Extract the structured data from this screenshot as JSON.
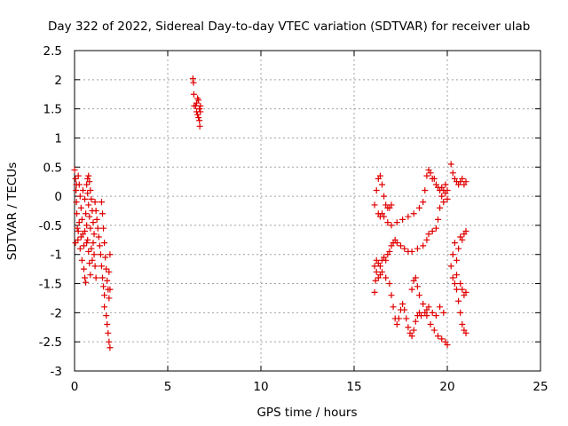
{
  "chart_data": {
    "type": "scatter",
    "title": "Day 322 of 2022, Sidereal Day-to-day VTEC variation (SDTVAR) for receiver ulab",
    "xlabel": "GPS time / hours",
    "ylabel": "SDTVAR / TECUs",
    "xlim": [
      0,
      25
    ],
    "ylim": [
      -3,
      2.5
    ],
    "xticks": [
      "0",
      "5",
      "10",
      "15",
      "20",
      "25"
    ],
    "yticks": [
      "2.5",
      "2",
      "1.5",
      "1",
      "0.5",
      "0",
      "-0.5",
      "-1",
      "-1.5",
      "-2",
      "-2.5",
      "-3"
    ],
    "grid": true,
    "marker": "+",
    "color": "#e00000",
    "series": [
      {
        "points": [
          [
            0.0,
            0.45
          ],
          [
            0.05,
            0.3
          ],
          [
            0.08,
            0.1
          ],
          [
            0.1,
            -0.1
          ],
          [
            0.12,
            -0.3
          ],
          [
            0.15,
            -0.55
          ],
          [
            0.18,
            -0.75
          ],
          [
            0.05,
            -0.8
          ],
          [
            0.2,
            0.35
          ],
          [
            0.25,
            0.2
          ],
          [
            0.3,
            0.0
          ],
          [
            0.35,
            -0.2
          ],
          [
            0.4,
            -0.4
          ],
          [
            0.45,
            -0.65
          ],
          [
            0.5,
            -0.85
          ],
          [
            0.3,
            -0.9
          ],
          [
            0.4,
            -1.1
          ],
          [
            0.5,
            -1.25
          ],
          [
            0.55,
            -1.4
          ],
          [
            0.6,
            -1.48
          ],
          [
            0.45,
            0.1
          ],
          [
            0.55,
            -0.05
          ],
          [
            0.6,
            -0.3
          ],
          [
            0.65,
            -0.5
          ],
          [
            0.7,
            -0.75
          ],
          [
            0.75,
            -0.95
          ],
          [
            0.8,
            -1.15
          ],
          [
            0.85,
            -1.35
          ],
          [
            0.65,
            0.2
          ],
          [
            0.7,
            0.05
          ],
          [
            0.75,
            -0.15
          ],
          [
            0.8,
            -0.35
          ],
          [
            0.85,
            -0.55
          ],
          [
            0.7,
            0.3
          ],
          [
            0.75,
            0.35
          ],
          [
            0.8,
            0.25
          ],
          [
            0.85,
            0.1
          ],
          [
            0.9,
            -0.05
          ],
          [
            0.95,
            -0.25
          ],
          [
            1.0,
            -0.45
          ],
          [
            1.05,
            -0.65
          ],
          [
            1.0,
            -0.8
          ],
          [
            1.05,
            -1.0
          ],
          [
            1.1,
            -1.2
          ],
          [
            1.15,
            -1.4
          ],
          [
            0.95,
            -1.1
          ],
          [
            0.9,
            -0.9
          ],
          [
            1.1,
            -0.1
          ],
          [
            1.15,
            -0.25
          ],
          [
            1.2,
            -0.4
          ],
          [
            1.25,
            -0.55
          ],
          [
            1.3,
            -0.7
          ],
          [
            1.35,
            -0.85
          ],
          [
            1.4,
            -1.0
          ],
          [
            1.45,
            -1.2
          ],
          [
            1.5,
            -1.4
          ],
          [
            1.55,
            -1.55
          ],
          [
            1.6,
            -1.7
          ],
          [
            1.45,
            -0.1
          ],
          [
            1.5,
            -0.3
          ],
          [
            1.55,
            -0.55
          ],
          [
            1.6,
            -0.8
          ],
          [
            1.65,
            -1.05
          ],
          [
            1.7,
            -1.25
          ],
          [
            1.75,
            -1.45
          ],
          [
            1.8,
            -1.6
          ],
          [
            1.85,
            -1.75
          ],
          [
            1.9,
            -1.6
          ],
          [
            1.85,
            -1.3
          ],
          [
            1.9,
            -1.0
          ],
          [
            1.6,
            -1.9
          ],
          [
            1.7,
            -2.05
          ],
          [
            1.75,
            -2.2
          ],
          [
            1.8,
            -2.35
          ],
          [
            1.85,
            -2.5
          ],
          [
            1.9,
            -2.6
          ],
          [
            0.2,
            -0.6
          ],
          [
            0.35,
            -0.7
          ],
          [
            0.55,
            -0.6
          ],
          [
            0.65,
            -0.8
          ],
          [
            0.25,
            -0.45
          ],
          [
            0.1,
            0.2
          ]
        ]
      },
      {
        "points": [
          [
            6.35,
            2.02
          ],
          [
            6.38,
            1.95
          ],
          [
            6.4,
            1.75
          ],
          [
            6.42,
            1.55
          ],
          [
            6.5,
            1.55
          ],
          [
            6.55,
            1.6
          ],
          [
            6.55,
            1.45
          ],
          [
            6.6,
            1.4
          ],
          [
            6.6,
            1.68
          ],
          [
            6.65,
            1.65
          ],
          [
            6.65,
            1.35
          ],
          [
            6.7,
            1.3
          ],
          [
            6.7,
            1.5
          ],
          [
            6.72,
            1.2
          ],
          [
            6.75,
            1.55
          ],
          [
            6.75,
            1.45
          ]
        ]
      },
      {
        "points": [
          [
            16.1,
            -0.15
          ],
          [
            16.2,
            0.1
          ],
          [
            16.3,
            0.3
          ],
          [
            16.4,
            0.35
          ],
          [
            16.5,
            0.2
          ],
          [
            16.6,
            0.0
          ],
          [
            16.7,
            -0.15
          ],
          [
            16.8,
            -0.2
          ],
          [
            16.9,
            -0.2
          ],
          [
            17.0,
            -0.15
          ],
          [
            16.3,
            -0.3
          ],
          [
            16.4,
            -0.35
          ],
          [
            16.5,
            -0.3
          ],
          [
            16.6,
            -0.35
          ],
          [
            16.8,
            -0.45
          ],
          [
            17.0,
            -0.5
          ],
          [
            17.3,
            -0.45
          ],
          [
            17.6,
            -0.4
          ],
          [
            17.9,
            -0.35
          ],
          [
            18.2,
            -0.3
          ],
          [
            18.5,
            -0.2
          ],
          [
            18.7,
            -0.1
          ],
          [
            18.8,
            0.1
          ],
          [
            18.9,
            0.35
          ],
          [
            19.0,
            0.45
          ],
          [
            19.1,
            0.4
          ],
          [
            19.2,
            0.3
          ],
          [
            19.3,
            0.3
          ],
          [
            19.4,
            0.2
          ],
          [
            19.5,
            0.15
          ],
          [
            19.6,
            0.1
          ],
          [
            19.7,
            0.15
          ],
          [
            19.8,
            0.1
          ],
          [
            19.9,
            0.2
          ],
          [
            20.0,
            0.1
          ],
          [
            20.2,
            0.55
          ],
          [
            20.3,
            0.4
          ],
          [
            20.4,
            0.3
          ],
          [
            20.5,
            0.25
          ],
          [
            20.6,
            0.2
          ],
          [
            20.7,
            0.25
          ],
          [
            20.8,
            0.3
          ],
          [
            20.9,
            0.2
          ],
          [
            21.0,
            0.25
          ],
          [
            16.1,
            -1.2
          ],
          [
            16.2,
            -1.1
          ],
          [
            16.3,
            -1.15
          ],
          [
            16.4,
            -1.2
          ],
          [
            16.5,
            -1.1
          ],
          [
            16.6,
            -1.05
          ],
          [
            16.7,
            -1.1
          ],
          [
            16.8,
            -1.0
          ],
          [
            16.9,
            -0.95
          ],
          [
            17.0,
            -0.85
          ],
          [
            17.1,
            -0.8
          ],
          [
            17.2,
            -0.75
          ],
          [
            17.3,
            -0.8
          ],
          [
            17.5,
            -0.85
          ],
          [
            17.7,
            -0.9
          ],
          [
            17.9,
            -0.95
          ],
          [
            18.1,
            -0.95
          ],
          [
            18.4,
            -0.9
          ],
          [
            18.7,
            -0.85
          ],
          [
            18.9,
            -0.75
          ],
          [
            19.0,
            -0.65
          ],
          [
            19.2,
            -0.6
          ],
          [
            19.4,
            -0.55
          ],
          [
            19.5,
            -0.4
          ],
          [
            19.6,
            -0.2
          ],
          [
            19.7,
            0.0
          ],
          [
            19.8,
            -0.1
          ],
          [
            19.9,
            0.05
          ],
          [
            20.0,
            -0.05
          ],
          [
            16.1,
            -1.65
          ],
          [
            16.15,
            -1.45
          ],
          [
            16.2,
            -1.3
          ],
          [
            16.3,
            -1.4
          ],
          [
            16.4,
            -1.35
          ],
          [
            16.5,
            -1.3
          ],
          [
            16.7,
            -1.4
          ],
          [
            16.9,
            -1.5
          ],
          [
            17.0,
            -1.7
          ],
          [
            17.1,
            -1.9
          ],
          [
            17.2,
            -2.1
          ],
          [
            17.3,
            -2.2
          ],
          [
            17.4,
            -2.1
          ],
          [
            17.5,
            -1.95
          ],
          [
            17.6,
            -1.85
          ],
          [
            17.7,
            -1.95
          ],
          [
            17.8,
            -2.1
          ],
          [
            17.9,
            -2.25
          ],
          [
            18.0,
            -2.35
          ],
          [
            18.1,
            -2.4
          ],
          [
            18.2,
            -2.3
          ],
          [
            18.3,
            -2.15
          ],
          [
            18.4,
            -2.05
          ],
          [
            18.5,
            -2.0
          ],
          [
            18.6,
            -2.05
          ],
          [
            18.8,
            -2.0
          ],
          [
            18.9,
            -1.95
          ],
          [
            19.0,
            -1.9
          ],
          [
            19.2,
            -2.0
          ],
          [
            19.4,
            -2.05
          ],
          [
            19.6,
            -1.9
          ],
          [
            19.8,
            -2.0
          ],
          [
            18.1,
            -1.6
          ],
          [
            18.2,
            -1.45
          ],
          [
            18.3,
            -1.4
          ],
          [
            18.4,
            -1.55
          ],
          [
            18.5,
            -1.7
          ],
          [
            18.7,
            -1.85
          ],
          [
            18.9,
            -2.05
          ],
          [
            19.1,
            -2.2
          ],
          [
            19.3,
            -2.3
          ],
          [
            19.5,
            -2.4
          ],
          [
            19.7,
            -2.45
          ],
          [
            19.9,
            -2.5
          ],
          [
            20.0,
            -2.55
          ],
          [
            20.2,
            -1.2
          ],
          [
            20.3,
            -1.0
          ],
          [
            20.4,
            -0.8
          ],
          [
            20.4,
            -1.5
          ],
          [
            20.5,
            -1.35
          ],
          [
            20.5,
            -1.6
          ],
          [
            20.6,
            -1.8
          ],
          [
            20.7,
            -2.0
          ],
          [
            20.8,
            -2.2
          ],
          [
            20.9,
            -2.3
          ],
          [
            21.0,
            -2.35
          ],
          [
            20.6,
            -0.9
          ],
          [
            20.7,
            -0.7
          ],
          [
            20.8,
            -0.75
          ],
          [
            20.9,
            -0.65
          ],
          [
            21.0,
            -0.6
          ],
          [
            20.7,
            -1.5
          ],
          [
            20.8,
            -1.6
          ],
          [
            20.9,
            -1.7
          ],
          [
            21.0,
            -1.65
          ],
          [
            20.5,
            -1.1
          ],
          [
            20.3,
            -1.4
          ]
        ]
      }
    ]
  }
}
